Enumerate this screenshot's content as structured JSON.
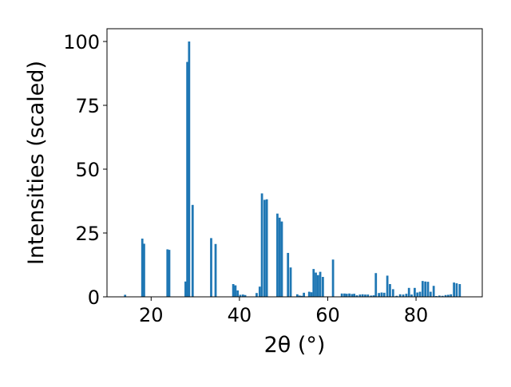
{
  "colors": {
    "bar": "#1f77b4",
    "axis": "#000000",
    "background": "#ffffff"
  },
  "chart_data": {
    "type": "bar",
    "xlabel": "2θ (°)",
    "ylabel": "Intensities (scaled)",
    "xlim": [
      10,
      95
    ],
    "ylim": [
      0,
      105
    ],
    "xticks": [
      20,
      40,
      60,
      80
    ],
    "yticks": [
      0,
      25,
      50,
      75,
      100
    ],
    "grid": false,
    "bar_width": 0.5,
    "x": [
      14.1,
      18.0,
      18.4,
      23.7,
      24.1,
      27.8,
      28.2,
      28.6,
      29.4,
      33.6,
      34.6,
      38.6,
      39.1,
      39.6,
      40.2,
      40.8,
      41.3,
      43.9,
      44.6,
      45.1,
      45.7,
      46.2,
      48.6,
      49.1,
      49.6,
      51.0,
      51.6,
      53.1,
      53.6,
      54.1,
      54.6,
      55.8,
      56.3,
      56.8,
      57.3,
      57.8,
      58.3,
      58.9,
      61.2,
      63.2,
      63.8,
      64.3,
      64.9,
      65.5,
      66.0,
      66.6,
      67.3,
      67.9,
      68.5,
      69.1,
      69.8,
      70.4,
      70.9,
      71.6,
      72.2,
      72.8,
      73.5,
      74.1,
      74.8,
      75.6,
      76.4,
      77.1,
      77.8,
      78.4,
      79.0,
      79.7,
      80.3,
      80.9,
      81.5,
      82.1,
      82.7,
      83.3,
      84.0,
      84.6,
      85.3,
      86.0,
      86.7,
      87.3,
      87.9,
      88.6,
      89.2,
      89.9
    ],
    "values": [
      0.8,
      22.8,
      20.8,
      18.6,
      18.4,
      6.0,
      92.0,
      100.0,
      36.0,
      23.0,
      20.7,
      5.0,
      4.5,
      2.5,
      0.8,
      0.9,
      0.7,
      1.5,
      4.0,
      40.5,
      38.0,
      38.2,
      32.6,
      31.0,
      29.5,
      17.2,
      11.5,
      1.0,
      0.5,
      0.4,
      1.6,
      2.0,
      1.8,
      10.9,
      9.5,
      8.5,
      9.8,
      7.8,
      14.6,
      1.3,
      1.3,
      1.2,
      1.3,
      1.1,
      1.2,
      0.6,
      0.9,
      1.0,
      0.9,
      0.9,
      0.5,
      0.6,
      9.3,
      1.5,
      1.7,
      1.6,
      8.3,
      5.0,
      3.0,
      0.4,
      1.0,
      0.9,
      1.2,
      3.5,
      0.9,
      3.5,
      1.7,
      2.0,
      6.2,
      6.0,
      5.9,
      2.0,
      4.3,
      0.3,
      0.5,
      0.4,
      0.7,
      0.8,
      1.0,
      5.6,
      5.3,
      5.0
    ]
  }
}
